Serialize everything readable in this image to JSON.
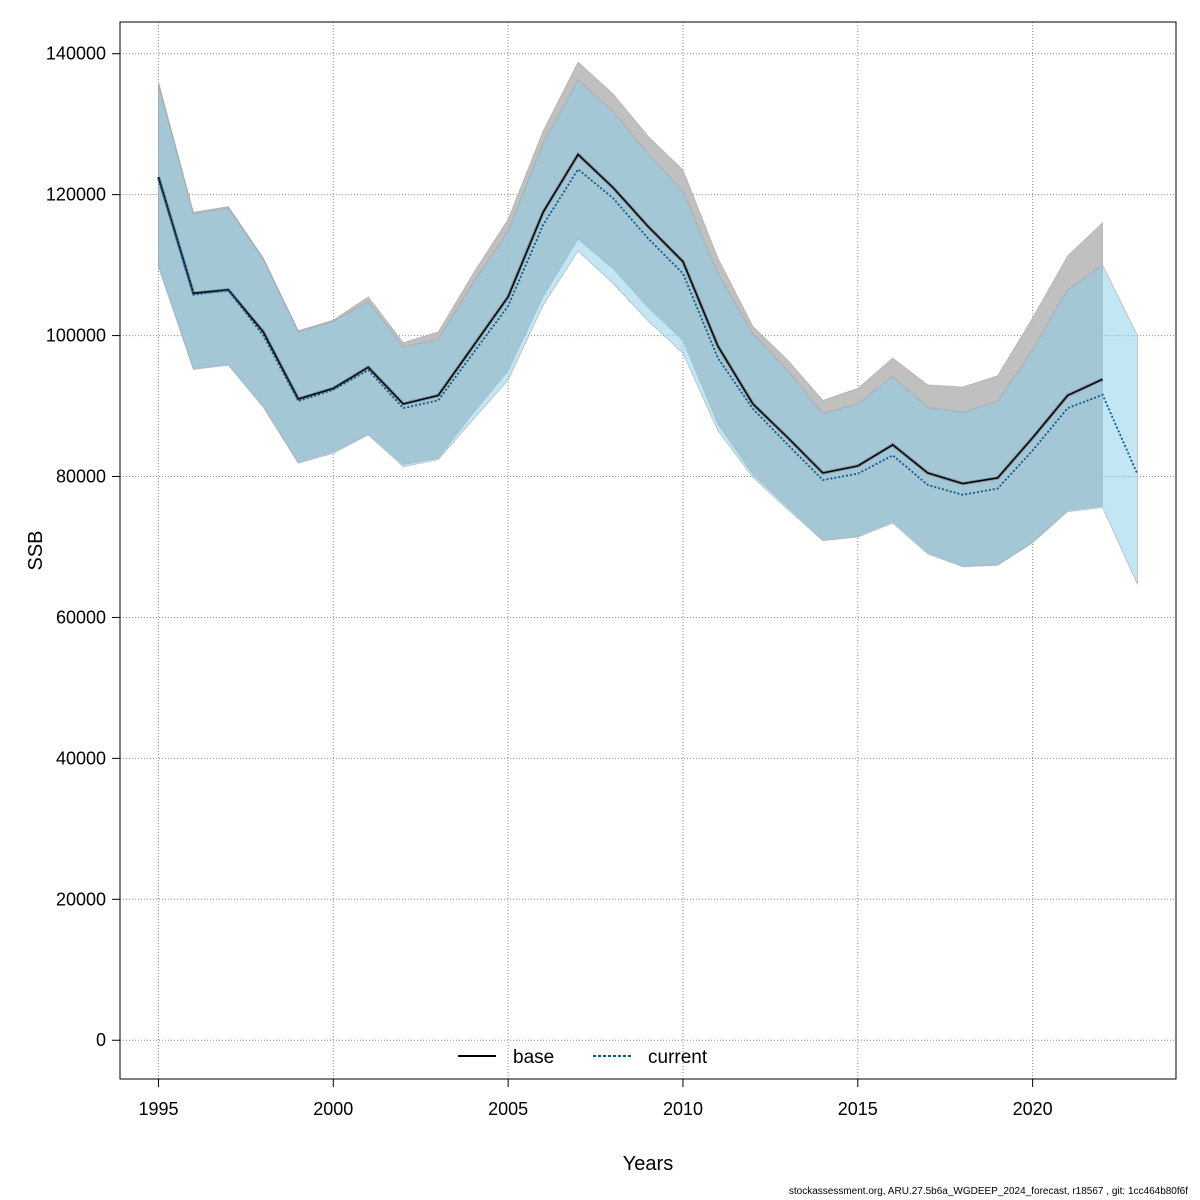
{
  "chart_data": {
    "type": "line",
    "xlabel": "Years",
    "ylabel": "SSB",
    "xlim": [
      1993.9,
      2024.1
    ],
    "ylim": [
      -5500,
      144500
    ],
    "x_ticks": [
      1995,
      2000,
      2005,
      2010,
      2015,
      2020
    ],
    "y_ticks": [
      0,
      20000,
      40000,
      60000,
      80000,
      100000,
      120000,
      140000
    ],
    "grid": true,
    "legend_position": "bottom-center",
    "series": [
      {
        "name": "base",
        "line_style": "solid",
        "line_color": "#000000",
        "band_color": "#bdbdbd",
        "x": [
          1995,
          1996,
          1997,
          1998,
          1999,
          2000,
          2001,
          2002,
          2003,
          2004,
          2005,
          2006,
          2007,
          2008,
          2009,
          2010,
          2011,
          2012,
          2013,
          2014,
          2015,
          2016,
          2017,
          2018,
          2019,
          2020,
          2021,
          2022
        ],
        "values": [
          122500,
          106000,
          106500,
          100500,
          91000,
          92500,
          95500,
          90300,
          91500,
          98500,
          105500,
          117500,
          125700,
          121000,
          115500,
          110500,
          98500,
          90300,
          85500,
          80500,
          81500,
          84500,
          80500,
          79000,
          79800,
          85500,
          91500,
          93800
        ],
        "upper": [
          136000,
          117500,
          118300,
          111000,
          100700,
          102200,
          105500,
          99000,
          100500,
          108800,
          116500,
          129000,
          138800,
          134300,
          128300,
          123500,
          111000,
          101300,
          96500,
          90800,
          92500,
          96800,
          93000,
          92700,
          94300,
          102500,
          111300,
          116000
        ],
        "lower": [
          110000,
          95300,
          95900,
          90000,
          82000,
          83500,
          86000,
          81700,
          82600,
          89000,
          95000,
          105500,
          113700,
          109500,
          104000,
          99300,
          87400,
          80300,
          75600,
          71000,
          71500,
          73600,
          69200,
          67300,
          67500,
          70700,
          75200,
          75800
        ]
      },
      {
        "name": "current",
        "line_style": "dotted",
        "line_color": "#0a5a8c",
        "band_color": "#87ceeb",
        "x": [
          1995,
          1996,
          1997,
          1998,
          1999,
          2000,
          2001,
          2002,
          2003,
          2004,
          2005,
          2006,
          2007,
          2008,
          2009,
          2010,
          2011,
          2012,
          2013,
          2014,
          2015,
          2016,
          2017,
          2018,
          2019,
          2020,
          2021,
          2022,
          2023
        ],
        "values": [
          122200,
          105800,
          106400,
          100000,
          90700,
          92300,
          95100,
          89700,
          90800,
          97500,
          104200,
          115700,
          123600,
          119500,
          113800,
          108800,
          96800,
          89600,
          84500,
          79500,
          80400,
          83000,
          78800,
          77400,
          78300,
          83700,
          89700,
          91600,
          80300
        ],
        "upper": [
          135500,
          117300,
          118100,
          110800,
          100500,
          102000,
          104800,
          98400,
          99500,
          107500,
          114800,
          127300,
          136300,
          131800,
          125800,
          120500,
          108800,
          100300,
          95000,
          88900,
          90300,
          94200,
          89800,
          89100,
          90700,
          98000,
          106500,
          110000,
          100000
        ],
        "lower": [
          109700,
          95200,
          95800,
          89800,
          81900,
          83300,
          85900,
          81400,
          82400,
          88100,
          93700,
          104300,
          112000,
          107400,
          102100,
          97500,
          86500,
          79900,
          75300,
          70900,
          71400,
          73400,
          69000,
          67200,
          67400,
          70600,
          75000,
          75600,
          64700
        ]
      }
    ]
  },
  "footer_text": "stockassessment.org, ARU.27.5b6a_WGDEEP_2024_forecast, r18567 , git: 1cc464b80f6f"
}
